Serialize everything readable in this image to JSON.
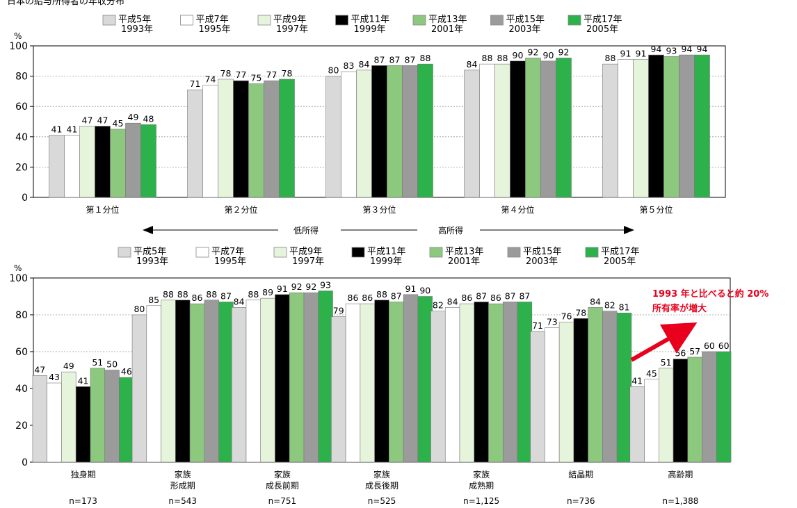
{
  "top_caption": "日本の給与所得者の年収分布",
  "series": [
    {
      "era": "平成5年",
      "year": "1993年",
      "color": "#d9d9d9"
    },
    {
      "era": "平成7年",
      "year": "1995年",
      "color": "#ffffff"
    },
    {
      "era": "平成9年",
      "year": "1997年",
      "color": "#e6f4dc"
    },
    {
      "era": "平成11年",
      "year": "1999年",
      "color": "#000000"
    },
    {
      "era": "平成13年",
      "year": "2001年",
      "color": "#8cc97e"
    },
    {
      "era": "平成15年",
      "year": "2003年",
      "color": "#9b9b9b"
    },
    {
      "era": "平成17年",
      "year": "2005年",
      "color": "#2db14a"
    }
  ],
  "income_arrow": {
    "low": "低所得",
    "high": "高所得"
  },
  "note": {
    "line1": "1993 年と比べると約 20%",
    "line2": "所有率が増大",
    "color": "#e8001c"
  },
  "chart_data": [
    {
      "type": "bar",
      "unit_label": "%",
      "ylim": [
        0,
        100
      ],
      "yticks": [
        0,
        20,
        40,
        60,
        80,
        100
      ],
      "grid": true,
      "legend": "top",
      "categories": [
        "第１分位",
        "第２分位",
        "第３分位",
        "第４分位",
        "第５分位"
      ],
      "category_sub": [
        "",
        "",
        "",
        "",
        ""
      ],
      "category_n": [
        "",
        "",
        "",
        "",
        ""
      ],
      "series": [
        {
          "name": "平成5年 1993年",
          "values": [
            41,
            71,
            80,
            84,
            88
          ]
        },
        {
          "name": "平成7年 1995年",
          "values": [
            41,
            74,
            83,
            88,
            91
          ]
        },
        {
          "name": "平成9年 1997年",
          "values": [
            47,
            78,
            84,
            88,
            91
          ]
        },
        {
          "name": "平成11年 1999年",
          "values": [
            47,
            77,
            87,
            90,
            94
          ]
        },
        {
          "name": "平成13年 2001年",
          "values": [
            45,
            75,
            87,
            92,
            93
          ]
        },
        {
          "name": "平成15年 2003年",
          "values": [
            49,
            77,
            87,
            90,
            94
          ]
        },
        {
          "name": "平成17年 2005年",
          "values": [
            48,
            78,
            88,
            92,
            94
          ]
        }
      ]
    },
    {
      "type": "bar",
      "unit_label": "%",
      "ylim": [
        0,
        100
      ],
      "yticks": [
        0,
        20,
        40,
        60,
        80,
        100
      ],
      "grid": true,
      "legend": "top",
      "categories": [
        "独身期",
        "家族",
        "家族",
        "家族",
        "家族",
        "結晶期",
        "高齢期"
      ],
      "category_sub": [
        "",
        "形成期",
        "成長前期",
        "成長後期",
        "成熟期",
        "",
        ""
      ],
      "category_n": [
        "n=173",
        "n=543",
        "n=751",
        "n=525",
        "n=1,125",
        "n=736",
        "n=1,388"
      ],
      "series": [
        {
          "name": "平成5年 1993年",
          "values": [
            47,
            80,
            84,
            79,
            82,
            71,
            41
          ]
        },
        {
          "name": "平成7年 1995年",
          "values": [
            43,
            85,
            88,
            86,
            84,
            73,
            45
          ]
        },
        {
          "name": "平成9年 1997年",
          "values": [
            49,
            88,
            89,
            86,
            86,
            76,
            51
          ]
        },
        {
          "name": "平成11年 1999年",
          "values": [
            41,
            88,
            91,
            88,
            87,
            78,
            56
          ]
        },
        {
          "name": "平成13年 2001年",
          "values": [
            51,
            86,
            92,
            87,
            86,
            84,
            57
          ]
        },
        {
          "name": "平成15年 2003年",
          "values": [
            50,
            88,
            92,
            91,
            87,
            82,
            60
          ]
        },
        {
          "name": "平成17年 2005年",
          "values": [
            46,
            87,
            93,
            90,
            87,
            81,
            60
          ]
        }
      ]
    }
  ]
}
